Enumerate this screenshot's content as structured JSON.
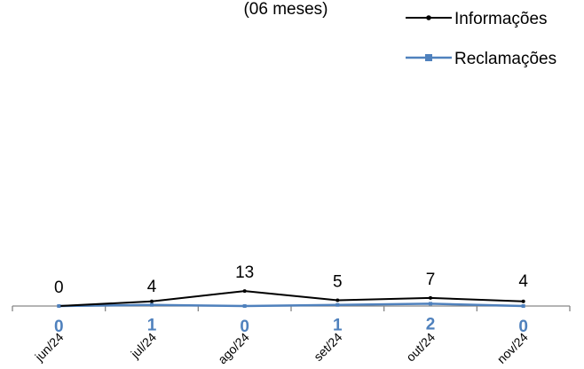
{
  "subtitle": "(06 meses)",
  "colors": {
    "series_a": "#000000",
    "series_b": "#4F81BD",
    "axis": "#868686"
  },
  "chart_data": {
    "type": "line",
    "categories": [
      "jun/24",
      "jul/24",
      "ago/24",
      "set/24",
      "out/24",
      "nov/24"
    ],
    "series": [
      {
        "name": "Informações",
        "values": [
          0,
          4,
          13,
          5,
          7,
          4
        ]
      },
      {
        "name": "Reclamações",
        "values": [
          0,
          1,
          0,
          1,
          2,
          0
        ]
      }
    ],
    "legend": "top-right",
    "grid": false
  }
}
